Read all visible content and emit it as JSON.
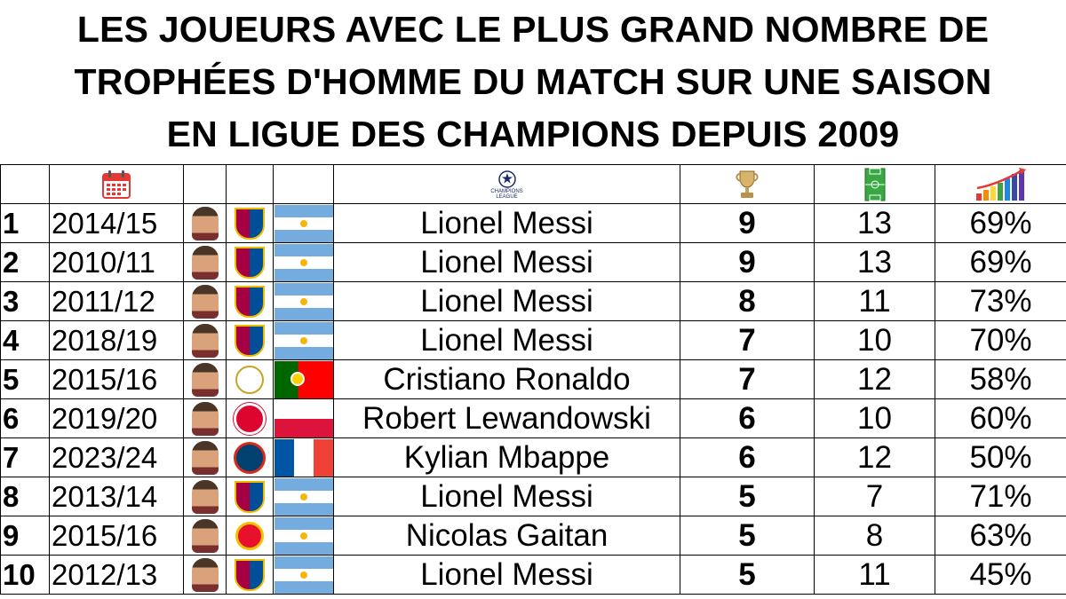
{
  "title": {
    "line1": "LES JOUEURS AVEC LE PLUS GRAND NOMBRE DE",
    "line2": "TROPHÉES D'HOMME DU MATCH SUR UNE SAISON",
    "line3": "EN LIGUE DES CHAMPIONS DEPUIS 2009"
  },
  "header": {
    "season_icon": "calendar-icon",
    "competition_logo": "champions-league-logo",
    "competition_logo_text": "CHAMPIONS LEAGUE",
    "motm_icon": "trophy-icon",
    "games_icon": "football-pitch-icon",
    "pct_icon": "bar-chart-growth-icon"
  },
  "colors": {
    "argentina_blue": "#74acdf",
    "portugal_green": "#006600",
    "portugal_red": "#ff0000",
    "poland_red": "#dc143c",
    "france_blue": "#0055a4",
    "france_red": "#ef4135",
    "barca_blue": "#004d98",
    "barca_red": "#a50044"
  },
  "rows": [
    {
      "rank": "1",
      "season": "2014/15",
      "club": "FC Barcelona",
      "country": "Argentina",
      "player": "Lionel Messi",
      "motm": "9",
      "games": "13",
      "pct": "69%"
    },
    {
      "rank": "2",
      "season": "2010/11",
      "club": "FC Barcelona",
      "country": "Argentina",
      "player": "Lionel Messi",
      "motm": "9",
      "games": "13",
      "pct": "69%"
    },
    {
      "rank": "3",
      "season": "2011/12",
      "club": "FC Barcelona",
      "country": "Argentina",
      "player": "Lionel Messi",
      "motm": "8",
      "games": "11",
      "pct": "73%"
    },
    {
      "rank": "4",
      "season": "2018/19",
      "club": "FC Barcelona",
      "country": "Argentina",
      "player": "Lionel Messi",
      "motm": "7",
      "games": "10",
      "pct": "70%"
    },
    {
      "rank": "5",
      "season": "2015/16",
      "club": "Real Madrid",
      "country": "Portugal",
      "player": "Cristiano Ronaldo",
      "motm": "7",
      "games": "12",
      "pct": "58%"
    },
    {
      "rank": "6",
      "season": "2019/20",
      "club": "Bayern Munich",
      "country": "Poland",
      "player": "Robert Lewandowski",
      "motm": "6",
      "games": "10",
      "pct": "60%"
    },
    {
      "rank": "7",
      "season": "2023/24",
      "club": "Paris Saint-Germain",
      "country": "France",
      "player": "Kylian Mbappe",
      "motm": "6",
      "games": "12",
      "pct": "50%"
    },
    {
      "rank": "8",
      "season": "2013/14",
      "club": "FC Barcelona",
      "country": "Argentina",
      "player": "Lionel Messi",
      "motm": "5",
      "games": "7",
      "pct": "71%"
    },
    {
      "rank": "9",
      "season": "2015/16",
      "club": "Benfica",
      "country": "Argentina",
      "player": "Nicolas Gaitan",
      "motm": "5",
      "games": "8",
      "pct": "63%"
    },
    {
      "rank": "10",
      "season": "2012/13",
      "club": "FC Barcelona",
      "country": "Argentina",
      "player": "Lionel Messi",
      "motm": "5",
      "games": "11",
      "pct": "45%"
    }
  ]
}
